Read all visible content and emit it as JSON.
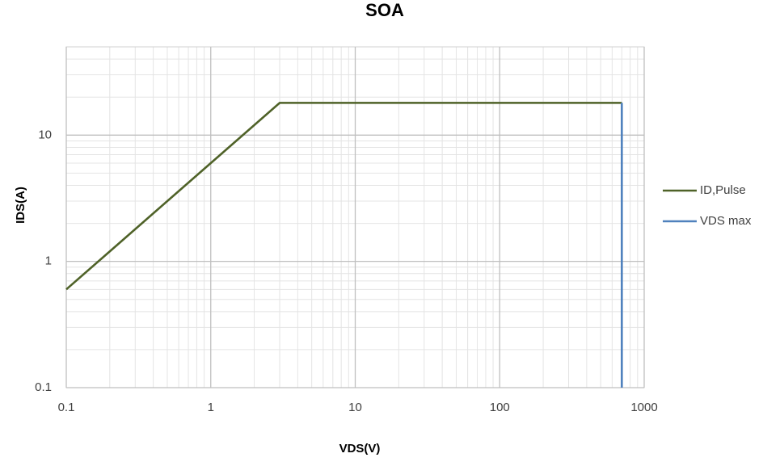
{
  "chart_data": {
    "type": "line",
    "title": "SOA",
    "x_label": "VDS(V)",
    "y_label": "IDS(A)",
    "x_log": true,
    "y_log": true,
    "grid": true,
    "minor_grid": true,
    "legend": "right",
    "xlim": [
      0.1,
      1000
    ],
    "xticks": [
      0.1,
      1,
      10,
      100,
      1000
    ],
    "ylim": [
      0.1,
      50
    ],
    "yticks": [
      0.1,
      1,
      10
    ],
    "series": [
      {
        "name": "ID,Pulse",
        "color": "#4f6228",
        "x": [
          0.1,
          3,
          700
        ],
        "values": [
          0.6,
          18,
          18
        ]
      },
      {
        "name": "VDS max",
        "color": "#4f81bd",
        "x": [
          700,
          700
        ],
        "values": [
          18,
          0.1
        ]
      }
    ]
  }
}
